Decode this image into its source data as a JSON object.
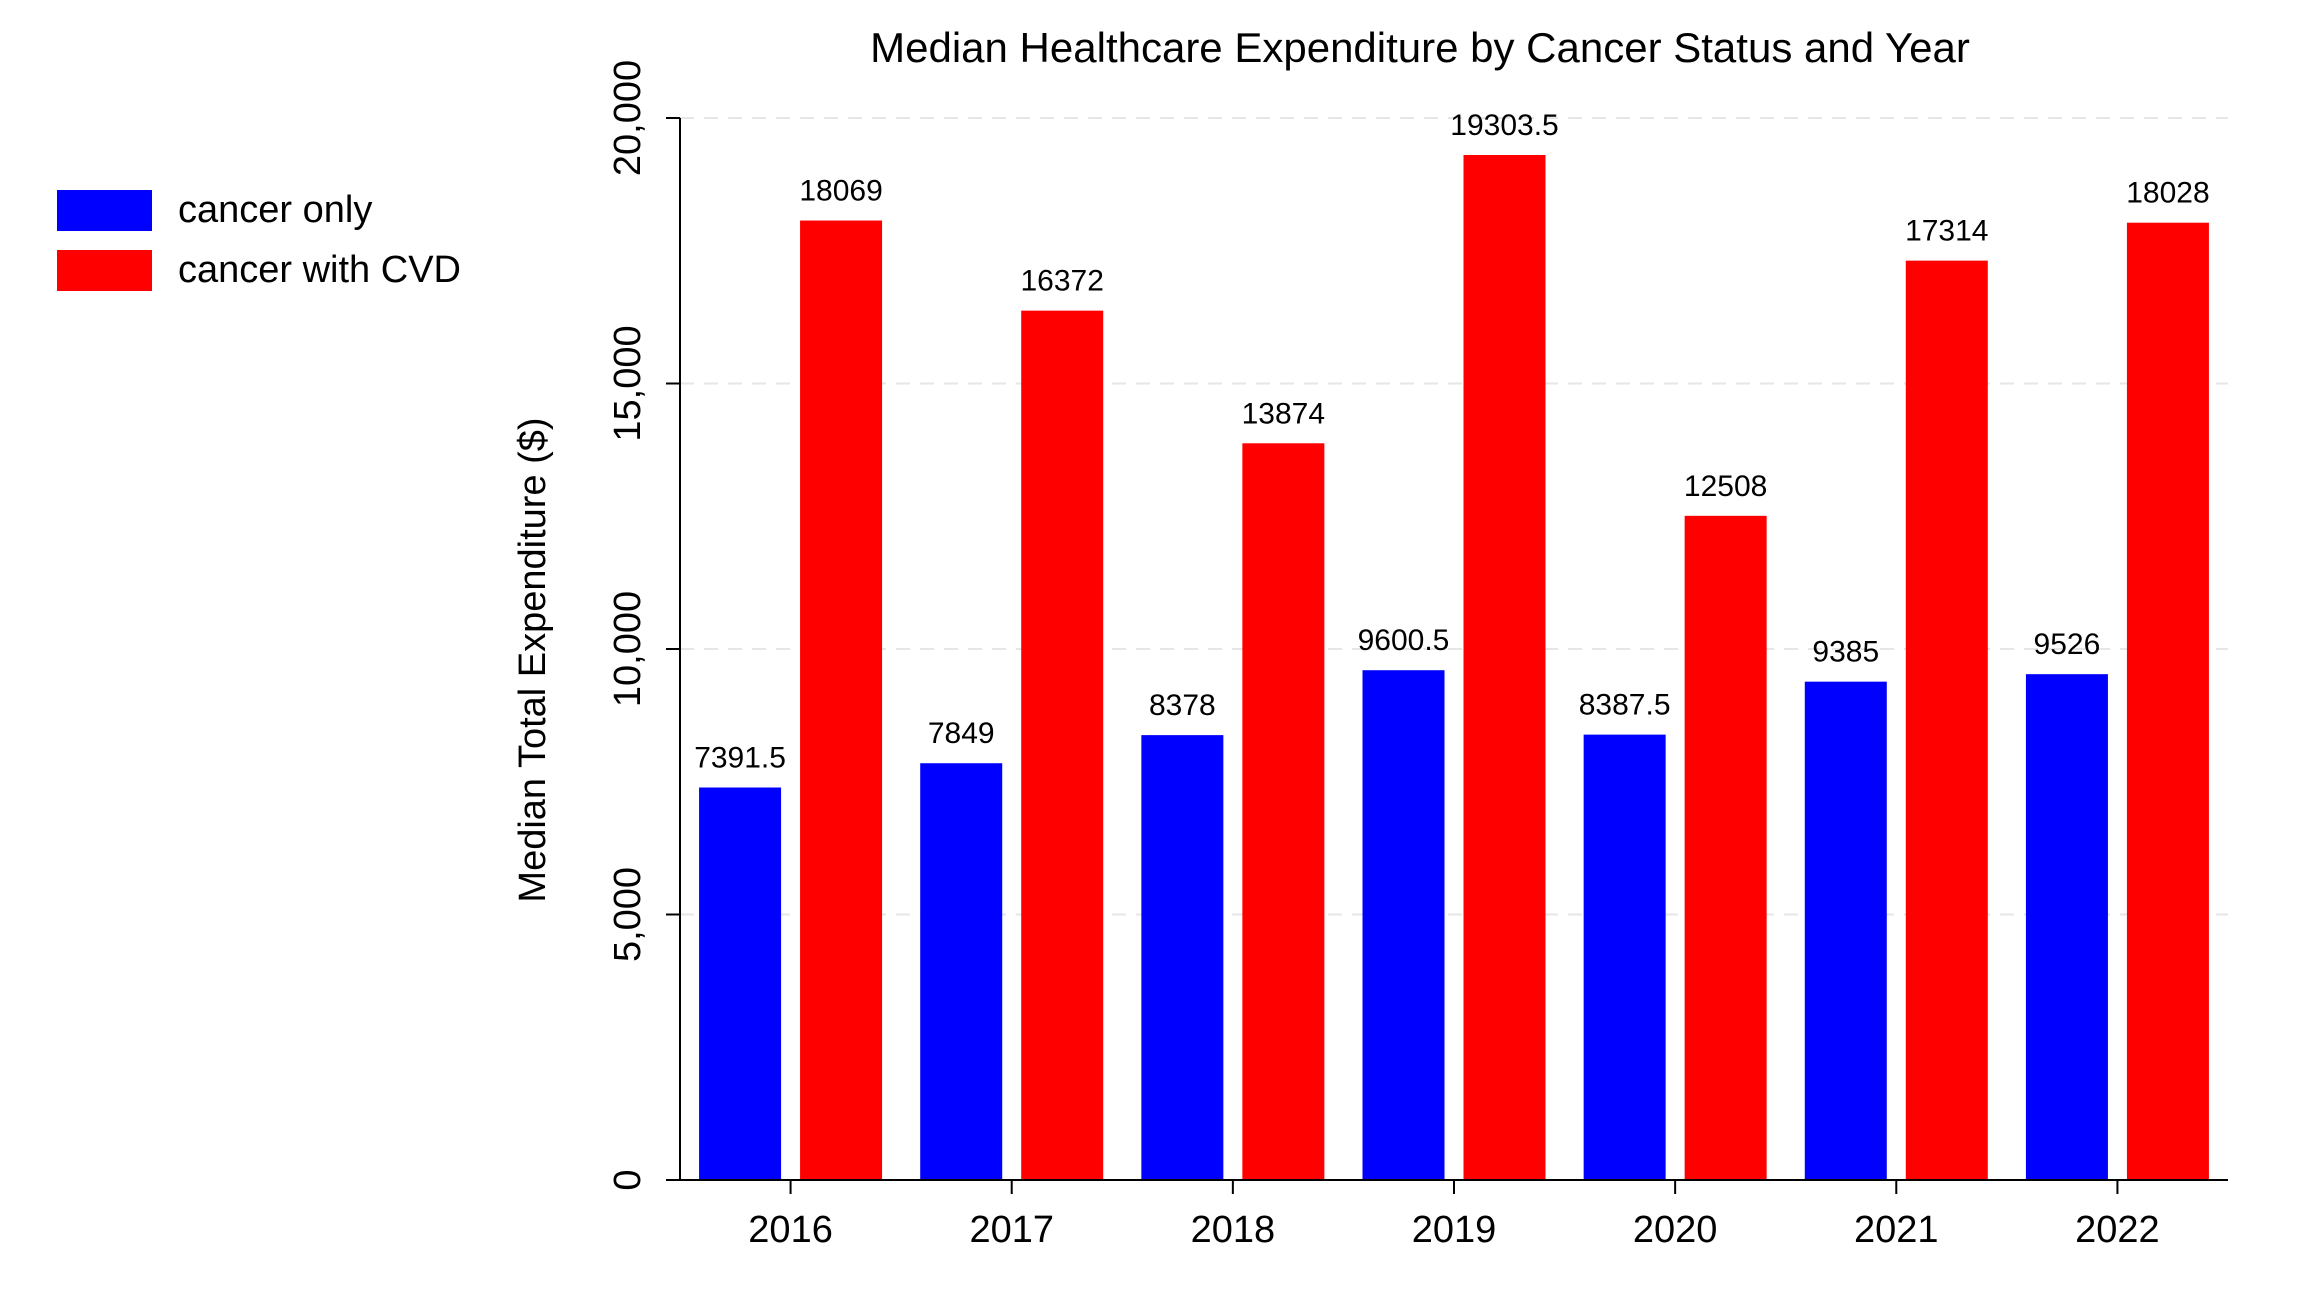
{
  "chart_data": {
    "type": "bar",
    "title": "Median Healthcare Expenditure by Cancer Status and Year",
    "xlabel": "",
    "ylabel": "Median Total Expenditure ($)",
    "categories": [
      "2016",
      "2017",
      "2018",
      "2019",
      "2020",
      "2021",
      "2022"
    ],
    "series": [
      {
        "name": "cancer only",
        "color": "#0000ff",
        "values": [
          7391.5,
          7849,
          8378,
          9600.5,
          8387.5,
          9385,
          9526
        ],
        "labels": [
          "7391.5",
          "7849",
          "8378",
          "9600.5",
          "8387.5",
          "9385",
          "9526"
        ]
      },
      {
        "name": "cancer with CVD",
        "color": "#ff0000",
        "values": [
          18069,
          16372,
          13874,
          19303.5,
          12508,
          17314,
          18028
        ],
        "labels": [
          "18069",
          "16372",
          "13874",
          "19303.5",
          "12508",
          "17314",
          "18028"
        ]
      }
    ],
    "ylim": [
      0,
      20000
    ],
    "yticks": [
      0,
      5000,
      10000,
      15000,
      20000
    ],
    "ytick_labels": [
      "0",
      "5,000",
      "10,000",
      "15,000",
      "20,000"
    ],
    "grid": true,
    "legend_position": "top-left"
  }
}
